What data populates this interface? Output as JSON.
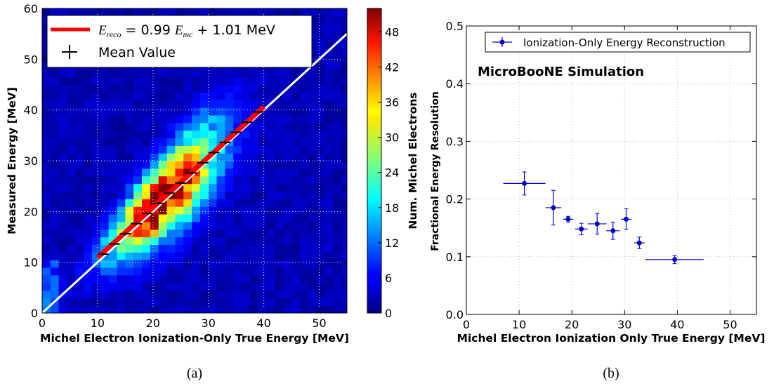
{
  "panel_a": {
    "caption": "(a)",
    "xlabel": "Michel Electron Ionization-Only True Energy [MeV]",
    "ylabel": "Measured Energy [MeV]",
    "colorbar_label": "Num. Michel Electrons",
    "legend_fit_label": "E_reco = 0.99 E_mc + 1.01 MeV",
    "legend_mean_label": "Mean Value",
    "colormap": "jet",
    "fit_color": "#ff0000",
    "diagonal_color": "#ffffff"
  },
  "panel_b": {
    "caption": "(b)",
    "xlabel": "Michel Electron Ionization Only True Energy [MeV]",
    "ylabel": "Fractional Energy Resolution",
    "annotation": "MicroBooNE Simulation",
    "legend_label": "Ionization-Only Energy Reconstruction",
    "series_color": "#0000cc"
  },
  "chart_data": [
    {
      "type": "heatmap",
      "title": "",
      "xlabel": "Michel Electron Ionization-Only True Energy [MeV]",
      "ylabel": "Measured Energy [MeV]",
      "xlim": [
        0,
        55
      ],
      "ylim": [
        0,
        60
      ],
      "x_ticks": [
        0,
        10,
        20,
        30,
        40,
        50
      ],
      "y_ticks": [
        0,
        10,
        20,
        30,
        40,
        50,
        60
      ],
      "colorbar": {
        "label": "Num. Michel Electrons",
        "range": [
          0,
          52
        ],
        "ticks": [
          0,
          6,
          12,
          18,
          24,
          30,
          36,
          42,
          48
        ]
      },
      "grid": true,
      "legend_position": "top-left",
      "fit_line": {
        "label": "E_reco = 0.99 E_mc + 1.01 MeV",
        "slope": 0.99,
        "intercept": 1.01,
        "x_range": [
          10,
          40
        ]
      },
      "diagonal": {
        "slope": 1.0,
        "intercept": 0.0
      },
      "mean_points": {
        "name": "Mean Value",
        "x": [
          11,
          13,
          15,
          17,
          19,
          21,
          23,
          25,
          27,
          29,
          31,
          33,
          35,
          37,
          39
        ],
        "y": [
          11.6,
          13.6,
          15.6,
          17.6,
          19.6,
          21.6,
          23.6,
          25.6,
          27.6,
          29.6,
          31.6,
          33.6,
          35.6,
          37.6,
          39.6
        ],
        "xerr": 1.0
      }
    },
    {
      "type": "scatter",
      "title": "",
      "xlabel": "Michel Electron Ionization Only True Energy [MeV]",
      "ylabel": "Fractional Energy Resolution",
      "xlim": [
        0,
        55
      ],
      "ylim": [
        0,
        0.5
      ],
      "x_ticks": [
        0,
        10,
        20,
        30,
        40,
        50
      ],
      "y_ticks": [
        0.0,
        0.1,
        0.2,
        0.3,
        0.4,
        0.5
      ],
      "grid": true,
      "legend_position": "top-right",
      "series": [
        {
          "name": "Ionization-Only Energy Reconstruction",
          "x": [
            11.0,
            16.5,
            19.3,
            21.8,
            24.8,
            27.8,
            30.3,
            32.8,
            39.5
          ],
          "y": [
            0.227,
            0.185,
            0.165,
            0.148,
            0.157,
            0.145,
            0.165,
            0.124,
            0.095
          ],
          "xerr_low": [
            4.0,
            1.5,
            1.0,
            1.2,
            1.8,
            1.3,
            1.0,
            1.0,
            5.5
          ],
          "xerr_high": [
            4.0,
            1.5,
            1.0,
            1.2,
            1.8,
            1.3,
            1.0,
            1.0,
            5.5
          ],
          "yerr": [
            0.02,
            0.03,
            0.005,
            0.01,
            0.018,
            0.015,
            0.018,
            0.01,
            0.007
          ]
        }
      ]
    }
  ]
}
